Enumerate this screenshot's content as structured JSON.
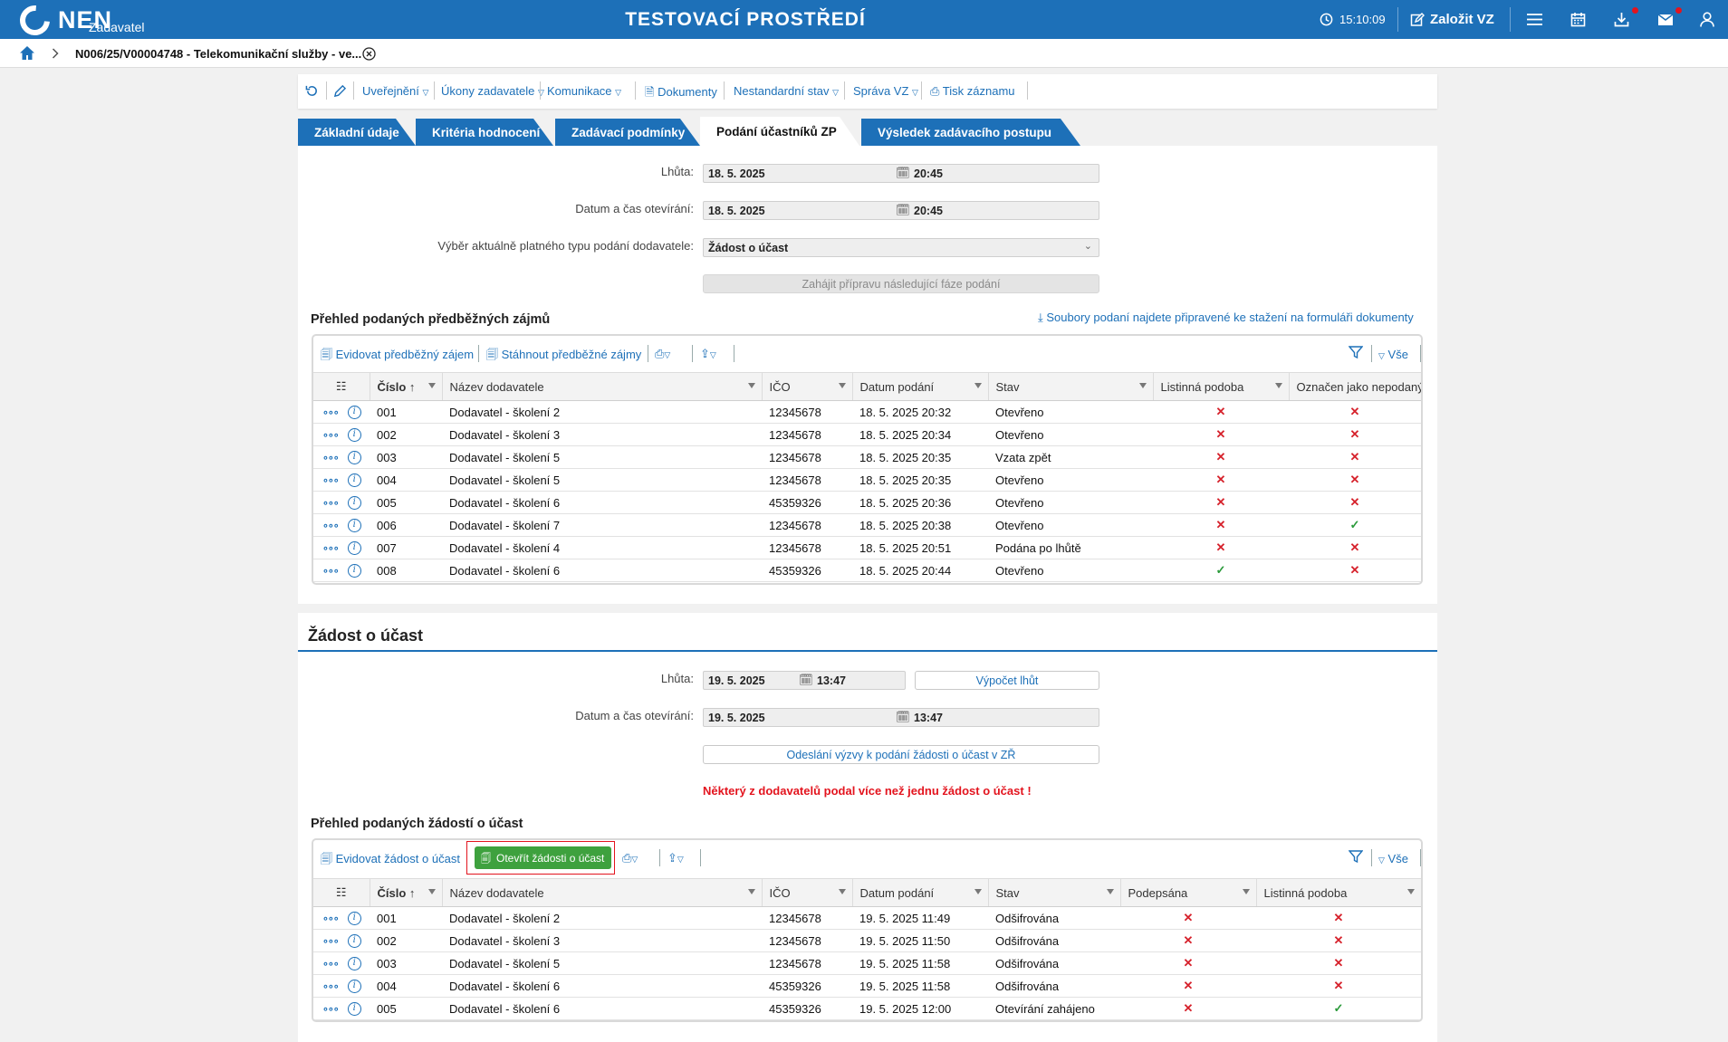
{
  "header": {
    "logo_text": "NEN",
    "logo_sub": "Zadavatel",
    "environment": "TESTOVACÍ PROSTŘEDÍ",
    "clock": "15:10:09",
    "create_label": "Založit VZ"
  },
  "breadcrumb": {
    "current": "N006/25/V00004748 - Telekomunikační služby - ve..."
  },
  "actions": {
    "publish": "Uveřejnění",
    "acts": "Úkony zadavatele",
    "communication": "Komunikace",
    "documents": "Dokumenty",
    "nonstandard": "Nestandardní stav",
    "management": "Správa VZ",
    "print": "Tisk záznamu"
  },
  "tabs": [
    {
      "label": "Základní údaje"
    },
    {
      "label": "Kritéria hodnocení"
    },
    {
      "label": "Zadávací podmínky"
    },
    {
      "label": "Podání účastníků ZP"
    },
    {
      "label": "Výsledek zadávacího postupu"
    }
  ],
  "top_form": {
    "deadline_label": "Lhůta:",
    "deadline_date": "18. 5. 2025",
    "deadline_time": "20:45",
    "opening_label": "Datum a čas otevírání:",
    "opening_date": "18. 5. 2025",
    "opening_time": "20:45",
    "type_label": "Výběr aktuálně platného typu podání dodavatele:",
    "type_value": "Žádost o účast",
    "next_phase_button": "Zahájit přípravu následující fáze podání"
  },
  "interest": {
    "title": "Přehled podaných předběžných zájmů",
    "download_link": "Soubory podaní najdete připravené ke stažení na formuláři dokumenty",
    "add_label": "Evidovat předběžný zájem",
    "download_label": "Stáhnout předběžné zájmy",
    "all_label": "Vše",
    "columns": [
      "Číslo",
      "Název dodavatele",
      "IČO",
      "Datum podání",
      "Stav",
      "Listinná podoba",
      "Označen jako nepodaný"
    ],
    "rows": [
      {
        "num": "001",
        "name": "Dodavatel - školení 2",
        "ico": "12345678",
        "date": "18. 5. 2025 20:32",
        "state": "Otevřeno",
        "paper": "✕",
        "unsubmitted": "✕"
      },
      {
        "num": "002",
        "name": "Dodavatel - školení 3",
        "ico": "12345678",
        "date": "18. 5. 2025 20:34",
        "state": "Otevřeno",
        "paper": "✕",
        "unsubmitted": "✕"
      },
      {
        "num": "003",
        "name": "Dodavatel - školení 5",
        "ico": "12345678",
        "date": "18. 5. 2025 20:35",
        "state": "Vzata zpět",
        "paper": "✕",
        "unsubmitted": "✕"
      },
      {
        "num": "004",
        "name": "Dodavatel - školení 5",
        "ico": "12345678",
        "date": "18. 5. 2025 20:35",
        "state": "Otevřeno",
        "paper": "✕",
        "unsubmitted": "✕"
      },
      {
        "num": "005",
        "name": "Dodavatel - školení 6",
        "ico": "45359326",
        "date": "18. 5. 2025 20:36",
        "state": "Otevřeno",
        "paper": "✕",
        "unsubmitted": "✕"
      },
      {
        "num": "006",
        "name": "Dodavatel - školení 7",
        "ico": "12345678",
        "date": "18. 5. 2025 20:38",
        "state": "Otevřeno",
        "paper": "✕",
        "unsubmitted": "✓"
      },
      {
        "num": "007",
        "name": "Dodavatel - školení 4",
        "ico": "12345678",
        "date": "18. 5. 2025 20:51",
        "state": "Podána po lhůtě",
        "paper": "✕",
        "unsubmitted": "✕"
      },
      {
        "num": "008",
        "name": "Dodavatel - školení 6",
        "ico": "45359326",
        "date": "18. 5. 2025 20:44",
        "state": "Otevřeno",
        "paper": "✓",
        "unsubmitted": "✕"
      }
    ]
  },
  "request": {
    "section_title": "Žádost o účast",
    "deadline_label": "Lhůta:",
    "deadline_date": "19. 5. 2025",
    "deadline_time": "13:47",
    "calc_button": "Výpočet lhůt",
    "opening_label": "Datum a čas otevírání:",
    "opening_date": "19. 5. 2025",
    "opening_time": "13:47",
    "send_invite_button": "Odeslání výzvy k podání žádosti o účast v ZŘ",
    "warning": "Některý z dodavatelů podal více než jednu žádost o účast !",
    "title": "Přehled podaných žádostí o účast",
    "add_label": "Evidovat žádost o účast",
    "open_label": "Otevřít žádosti o účast",
    "all_label": "Vše",
    "columns": [
      "Číslo",
      "Název dodavatele",
      "IČO",
      "Datum podání",
      "Stav",
      "Podepsána",
      "Listinná podoba"
    ],
    "rows": [
      {
        "num": "001",
        "name": "Dodavatel - školení 2",
        "ico": "12345678",
        "date": "19. 5. 2025 11:49",
        "state": "Odšifrována",
        "signed": "✕",
        "paper": "✕"
      },
      {
        "num": "002",
        "name": "Dodavatel - školení 3",
        "ico": "12345678",
        "date": "19. 5. 2025 11:50",
        "state": "Odšifrována",
        "signed": "✕",
        "paper": "✕"
      },
      {
        "num": "003",
        "name": "Dodavatel - školení 5",
        "ico": "12345678",
        "date": "19. 5. 2025 11:58",
        "state": "Odšifrována",
        "signed": "✕",
        "paper": "✕"
      },
      {
        "num": "004",
        "name": "Dodavatel - školení 6",
        "ico": "45359326",
        "date": "19. 5. 2025 11:58",
        "state": "Odšifrována",
        "signed": "✕",
        "paper": "✕"
      },
      {
        "num": "005",
        "name": "Dodavatel - školení 6",
        "ico": "45359326",
        "date": "19. 5. 2025 12:00",
        "state": "Otevírání zahájeno",
        "signed": "✕",
        "paper": "✓"
      }
    ]
  },
  "icons": {
    "x_color": "#d6212b",
    "check_color": "#2a9a3a",
    "brand": "#1d70b8"
  }
}
